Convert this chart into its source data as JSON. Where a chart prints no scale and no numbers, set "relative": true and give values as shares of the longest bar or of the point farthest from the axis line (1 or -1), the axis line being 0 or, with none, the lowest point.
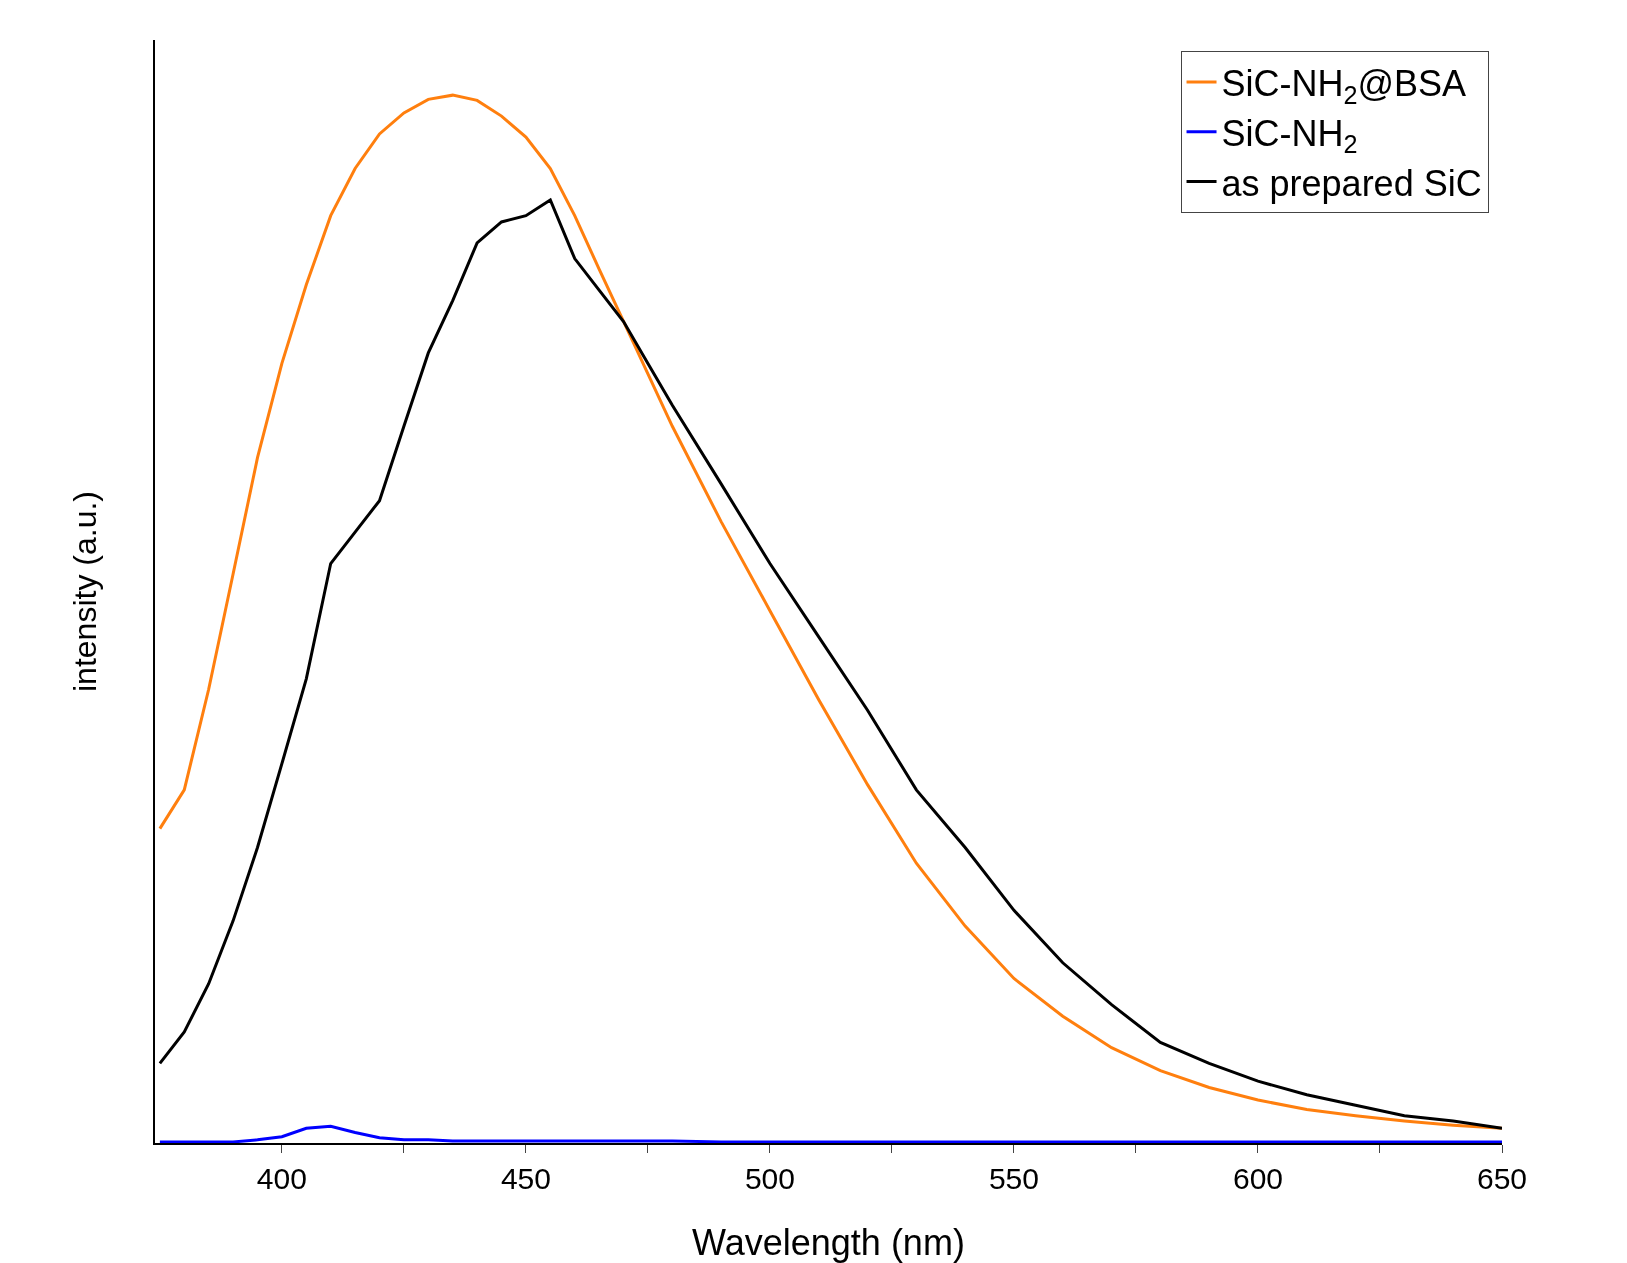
{
  "chart_data": {
    "type": "line",
    "xlabel": "Wavelength (nm)",
    "ylabel": "intensity (a.u.)",
    "relative": true,
    "xlim": [
      374,
      650
    ],
    "xticks": [
      400,
      {
        "value": 425,
        "label": null
      },
      450,
      {
        "value": 475,
        "label": null
      },
      500,
      {
        "value": 525,
        "label": null
      },
      550,
      {
        "value": 575,
        "label": null
      },
      600,
      {
        "value": 625,
        "label": null
      },
      650
    ],
    "grid": false,
    "legend": "top right",
    "marker": "none",
    "line_style": "solid",
    "x": [
      375,
      380,
      385,
      390,
      395,
      400,
      405,
      410,
      415,
      420,
      425,
      430,
      435,
      440,
      445,
      450,
      455,
      460,
      465,
      470,
      475,
      480,
      490,
      500,
      510,
      520,
      530,
      540,
      550,
      560,
      570,
      580,
      590,
      600,
      610,
      620,
      630,
      640,
      650
    ],
    "series": [
      {
        "name": "SiC-NH$_{2}$@BSA",
        "color": "#ff7f0e",
        "values": [
          0.3,
          0.337,
          0.433,
          0.543,
          0.654,
          0.744,
          0.819,
          0.885,
          0.93,
          0.963,
          0.983,
          0.996,
          1.0,
          0.995,
          0.98,
          0.96,
          0.93,
          0.885,
          0.834,
          0.784,
          0.734,
          0.684,
          0.593,
          0.508,
          0.423,
          0.342,
          0.267,
          0.207,
          0.157,
          0.121,
          0.091,
          0.069,
          0.053,
          0.041,
          0.032,
          0.026,
          0.021,
          0.017,
          0.014
        ]
      },
      {
        "name": "SiC-NH$_{2}$",
        "color": "#0000ff",
        "values": [
          0.001,
          0.001,
          0.001,
          0.001,
          0.003,
          0.006,
          0.014,
          0.016,
          0.01,
          0.005,
          0.003,
          0.003,
          0.002,
          0.002,
          0.002,
          0.002,
          0.002,
          0.002,
          0.002,
          0.002,
          0.002,
          0.002,
          0.001,
          0.001,
          0.001,
          0.001,
          0.001,
          0.001,
          0.001,
          0.001,
          0.001,
          0.001,
          0.001,
          0.001,
          0.001,
          0.001,
          0.001,
          0.001,
          0.001
        ]
      },
      {
        "name": "as prepared SiC",
        "color": "#000000",
        "values": [
          0.076,
          0.106,
          0.152,
          0.212,
          0.282,
          0.362,
          0.443,
          0.553,
          0.583,
          0.613,
          0.684,
          0.754,
          0.804,
          0.859,
          0.879,
          0.885,
          0.9,
          0.844,
          0.814,
          0.784,
          0.744,
          0.704,
          0.629,
          0.553,
          0.483,
          0.413,
          0.337,
          0.282,
          0.222,
          0.172,
          0.132,
          0.096,
          0.076,
          0.059,
          0.046,
          0.036,
          0.026,
          0.021,
          0.014
        ]
      }
    ]
  }
}
